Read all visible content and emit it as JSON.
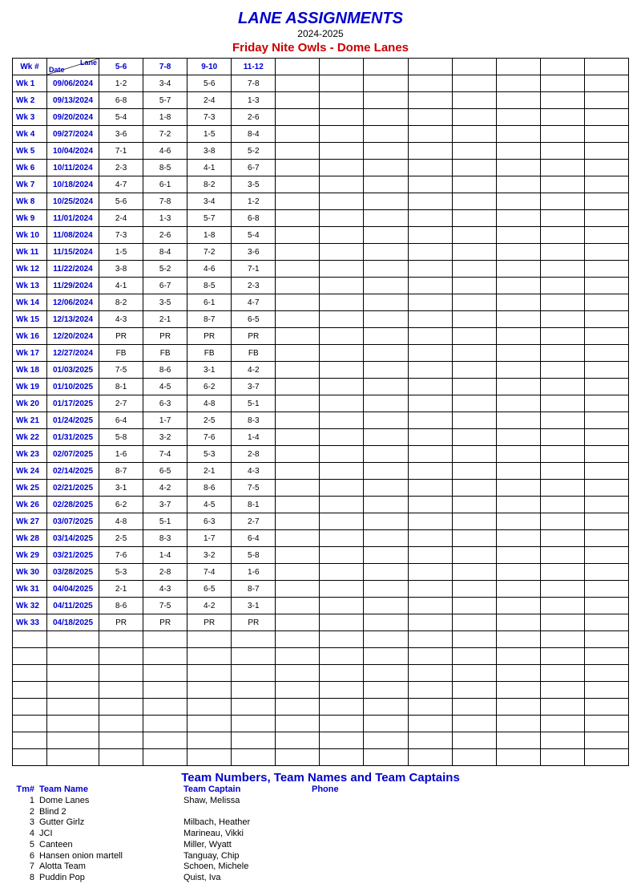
{
  "header": {
    "title": "LANE ASSIGNMENTS",
    "season": "2024-2025",
    "league": "Friday Nite Owls - Dome Lanes"
  },
  "columns": {
    "wk_label": "Wk #",
    "diag_date": "Date",
    "diag_lane": "Lane",
    "lanes": [
      "5-6",
      "7-8",
      "9-10",
      "11-12",
      "",
      "",
      "",
      "",
      "",
      "",
      "",
      ""
    ]
  },
  "rows": [
    {
      "wk": "Wk  1",
      "date": "09/06/2024",
      "cells": [
        "1-2",
        "3-4",
        "5-6",
        "7-8",
        "",
        "",
        "",
        "",
        "",
        "",
        "",
        ""
      ]
    },
    {
      "wk": "Wk  2",
      "date": "09/13/2024",
      "cells": [
        "6-8",
        "5-7",
        "2-4",
        "1-3",
        "",
        "",
        "",
        "",
        "",
        "",
        "",
        ""
      ]
    },
    {
      "wk": "Wk  3",
      "date": "09/20/2024",
      "cells": [
        "5-4",
        "1-8",
        "7-3",
        "2-6",
        "",
        "",
        "",
        "",
        "",
        "",
        "",
        ""
      ]
    },
    {
      "wk": "Wk  4",
      "date": "09/27/2024",
      "cells": [
        "3-6",
        "7-2",
        "1-5",
        "8-4",
        "",
        "",
        "",
        "",
        "",
        "",
        "",
        ""
      ]
    },
    {
      "wk": "Wk  5",
      "date": "10/04/2024",
      "cells": [
        "7-1",
        "4-6",
        "3-8",
        "5-2",
        "",
        "",
        "",
        "",
        "",
        "",
        "",
        ""
      ]
    },
    {
      "wk": "Wk  6",
      "date": "10/11/2024",
      "cells": [
        "2-3",
        "8-5",
        "4-1",
        "6-7",
        "",
        "",
        "",
        "",
        "",
        "",
        "",
        ""
      ]
    },
    {
      "wk": "Wk  7",
      "date": "10/18/2024",
      "cells": [
        "4-7",
        "6-1",
        "8-2",
        "3-5",
        "",
        "",
        "",
        "",
        "",
        "",
        "",
        ""
      ]
    },
    {
      "wk": "Wk  8",
      "date": "10/25/2024",
      "cells": [
        "5-6",
        "7-8",
        "3-4",
        "1-2",
        "",
        "",
        "",
        "",
        "",
        "",
        "",
        ""
      ]
    },
    {
      "wk": "Wk  9",
      "date": "11/01/2024",
      "cells": [
        "2-4",
        "1-3",
        "5-7",
        "6-8",
        "",
        "",
        "",
        "",
        "",
        "",
        "",
        ""
      ]
    },
    {
      "wk": "Wk 10",
      "date": "11/08/2024",
      "cells": [
        "7-3",
        "2-6",
        "1-8",
        "5-4",
        "",
        "",
        "",
        "",
        "",
        "",
        "",
        ""
      ]
    },
    {
      "wk": "Wk 11",
      "date": "11/15/2024",
      "cells": [
        "1-5",
        "8-4",
        "7-2",
        "3-6",
        "",
        "",
        "",
        "",
        "",
        "",
        "",
        ""
      ]
    },
    {
      "wk": "Wk 12",
      "date": "11/22/2024",
      "cells": [
        "3-8",
        "5-2",
        "4-6",
        "7-1",
        "",
        "",
        "",
        "",
        "",
        "",
        "",
        ""
      ]
    },
    {
      "wk": "Wk 13",
      "date": "11/29/2024",
      "cells": [
        "4-1",
        "6-7",
        "8-5",
        "2-3",
        "",
        "",
        "",
        "",
        "",
        "",
        "",
        ""
      ]
    },
    {
      "wk": "Wk 14",
      "date": "12/06/2024",
      "cells": [
        "8-2",
        "3-5",
        "6-1",
        "4-7",
        "",
        "",
        "",
        "",
        "",
        "",
        "",
        ""
      ]
    },
    {
      "wk": "Wk 15",
      "date": "12/13/2024",
      "cells": [
        "4-3",
        "2-1",
        "8-7",
        "6-5",
        "",
        "",
        "",
        "",
        "",
        "",
        "",
        ""
      ]
    },
    {
      "wk": "Wk 16",
      "date": "12/20/2024",
      "cells": [
        "PR",
        "PR",
        "PR",
        "PR",
        "",
        "",
        "",
        "",
        "",
        "",
        "",
        ""
      ]
    },
    {
      "wk": "Wk 17",
      "date": "12/27/2024",
      "cells": [
        "FB",
        "FB",
        "FB",
        "FB",
        "",
        "",
        "",
        "",
        "",
        "",
        "",
        ""
      ]
    },
    {
      "wk": "Wk 18",
      "date": "01/03/2025",
      "cells": [
        "7-5",
        "8-6",
        "3-1",
        "4-2",
        "",
        "",
        "",
        "",
        "",
        "",
        "",
        ""
      ]
    },
    {
      "wk": "Wk 19",
      "date": "01/10/2025",
      "cells": [
        "8-1",
        "4-5",
        "6-2",
        "3-7",
        "",
        "",
        "",
        "",
        "",
        "",
        "",
        ""
      ]
    },
    {
      "wk": "Wk 20",
      "date": "01/17/2025",
      "cells": [
        "2-7",
        "6-3",
        "4-8",
        "5-1",
        "",
        "",
        "",
        "",
        "",
        "",
        "",
        ""
      ]
    },
    {
      "wk": "Wk 21",
      "date": "01/24/2025",
      "cells": [
        "6-4",
        "1-7",
        "2-5",
        "8-3",
        "",
        "",
        "",
        "",
        "",
        "",
        "",
        ""
      ]
    },
    {
      "wk": "Wk 22",
      "date": "01/31/2025",
      "cells": [
        "5-8",
        "3-2",
        "7-6",
        "1-4",
        "",
        "",
        "",
        "",
        "",
        "",
        "",
        ""
      ]
    },
    {
      "wk": "Wk 23",
      "date": "02/07/2025",
      "cells": [
        "1-6",
        "7-4",
        "5-3",
        "2-8",
        "",
        "",
        "",
        "",
        "",
        "",
        "",
        ""
      ]
    },
    {
      "wk": "Wk 24",
      "date": "02/14/2025",
      "cells": [
        "8-7",
        "6-5",
        "2-1",
        "4-3",
        "",
        "",
        "",
        "",
        "",
        "",
        "",
        ""
      ]
    },
    {
      "wk": "Wk 25",
      "date": "02/21/2025",
      "cells": [
        "3-1",
        "4-2",
        "8-6",
        "7-5",
        "",
        "",
        "",
        "",
        "",
        "",
        "",
        ""
      ]
    },
    {
      "wk": "Wk 26",
      "date": "02/28/2025",
      "cells": [
        "6-2",
        "3-7",
        "4-5",
        "8-1",
        "",
        "",
        "",
        "",
        "",
        "",
        "",
        ""
      ]
    },
    {
      "wk": "Wk 27",
      "date": "03/07/2025",
      "cells": [
        "4-8",
        "5-1",
        "6-3",
        "2-7",
        "",
        "",
        "",
        "",
        "",
        "",
        "",
        ""
      ]
    },
    {
      "wk": "Wk 28",
      "date": "03/14/2025",
      "cells": [
        "2-5",
        "8-3",
        "1-7",
        "6-4",
        "",
        "",
        "",
        "",
        "",
        "",
        "",
        ""
      ]
    },
    {
      "wk": "Wk 29",
      "date": "03/21/2025",
      "cells": [
        "7-6",
        "1-4",
        "3-2",
        "5-8",
        "",
        "",
        "",
        "",
        "",
        "",
        "",
        ""
      ]
    },
    {
      "wk": "Wk 30",
      "date": "03/28/2025",
      "cells": [
        "5-3",
        "2-8",
        "7-4",
        "1-6",
        "",
        "",
        "",
        "",
        "",
        "",
        "",
        ""
      ]
    },
    {
      "wk": "Wk 31",
      "date": "04/04/2025",
      "cells": [
        "2-1",
        "4-3",
        "6-5",
        "8-7",
        "",
        "",
        "",
        "",
        "",
        "",
        "",
        ""
      ]
    },
    {
      "wk": "Wk 32",
      "date": "04/11/2025",
      "cells": [
        "8-6",
        "7-5",
        "4-2",
        "3-1",
        "",
        "",
        "",
        "",
        "",
        "",
        "",
        ""
      ]
    },
    {
      "wk": "Wk 33",
      "date": "04/18/2025",
      "cells": [
        "PR",
        "PR",
        "PR",
        "PR",
        "",
        "",
        "",
        "",
        "",
        "",
        "",
        ""
      ]
    }
  ],
  "empty_rows": 8,
  "teams_section": {
    "title": "Team Numbers, Team Names and Team Captains",
    "headers": {
      "num": "Tm#",
      "name": "Team Name",
      "captain": "Team Captain",
      "phone": "Phone"
    },
    "teams": [
      {
        "num": "1",
        "name": "Dome Lanes",
        "captain": "Shaw, Melissa",
        "phone": ""
      },
      {
        "num": "2",
        "name": "Blind 2",
        "captain": "",
        "phone": ""
      },
      {
        "num": "3",
        "name": "Gutter Girlz",
        "captain": "Milbach, Heather",
        "phone": ""
      },
      {
        "num": "4",
        "name": "JCI",
        "captain": "Marineau, Vikki",
        "phone": ""
      },
      {
        "num": "5",
        "name": "Canteen",
        "captain": "Miller, Wyatt",
        "phone": ""
      },
      {
        "num": "6",
        "name": "Hansen onion martell",
        "captain": "Tanguay, Chip",
        "phone": ""
      },
      {
        "num": "7",
        "name": "Alotta Team",
        "captain": "Schoen, Michele",
        "phone": ""
      },
      {
        "num": "8",
        "name": "Puddin Pop",
        "captain": "Quist, Iva",
        "phone": ""
      }
    ]
  },
  "style": {
    "title_color": "#0000cc",
    "accent_red": "#cc0000",
    "border_color": "#000000",
    "base_fontsize": 10
  }
}
